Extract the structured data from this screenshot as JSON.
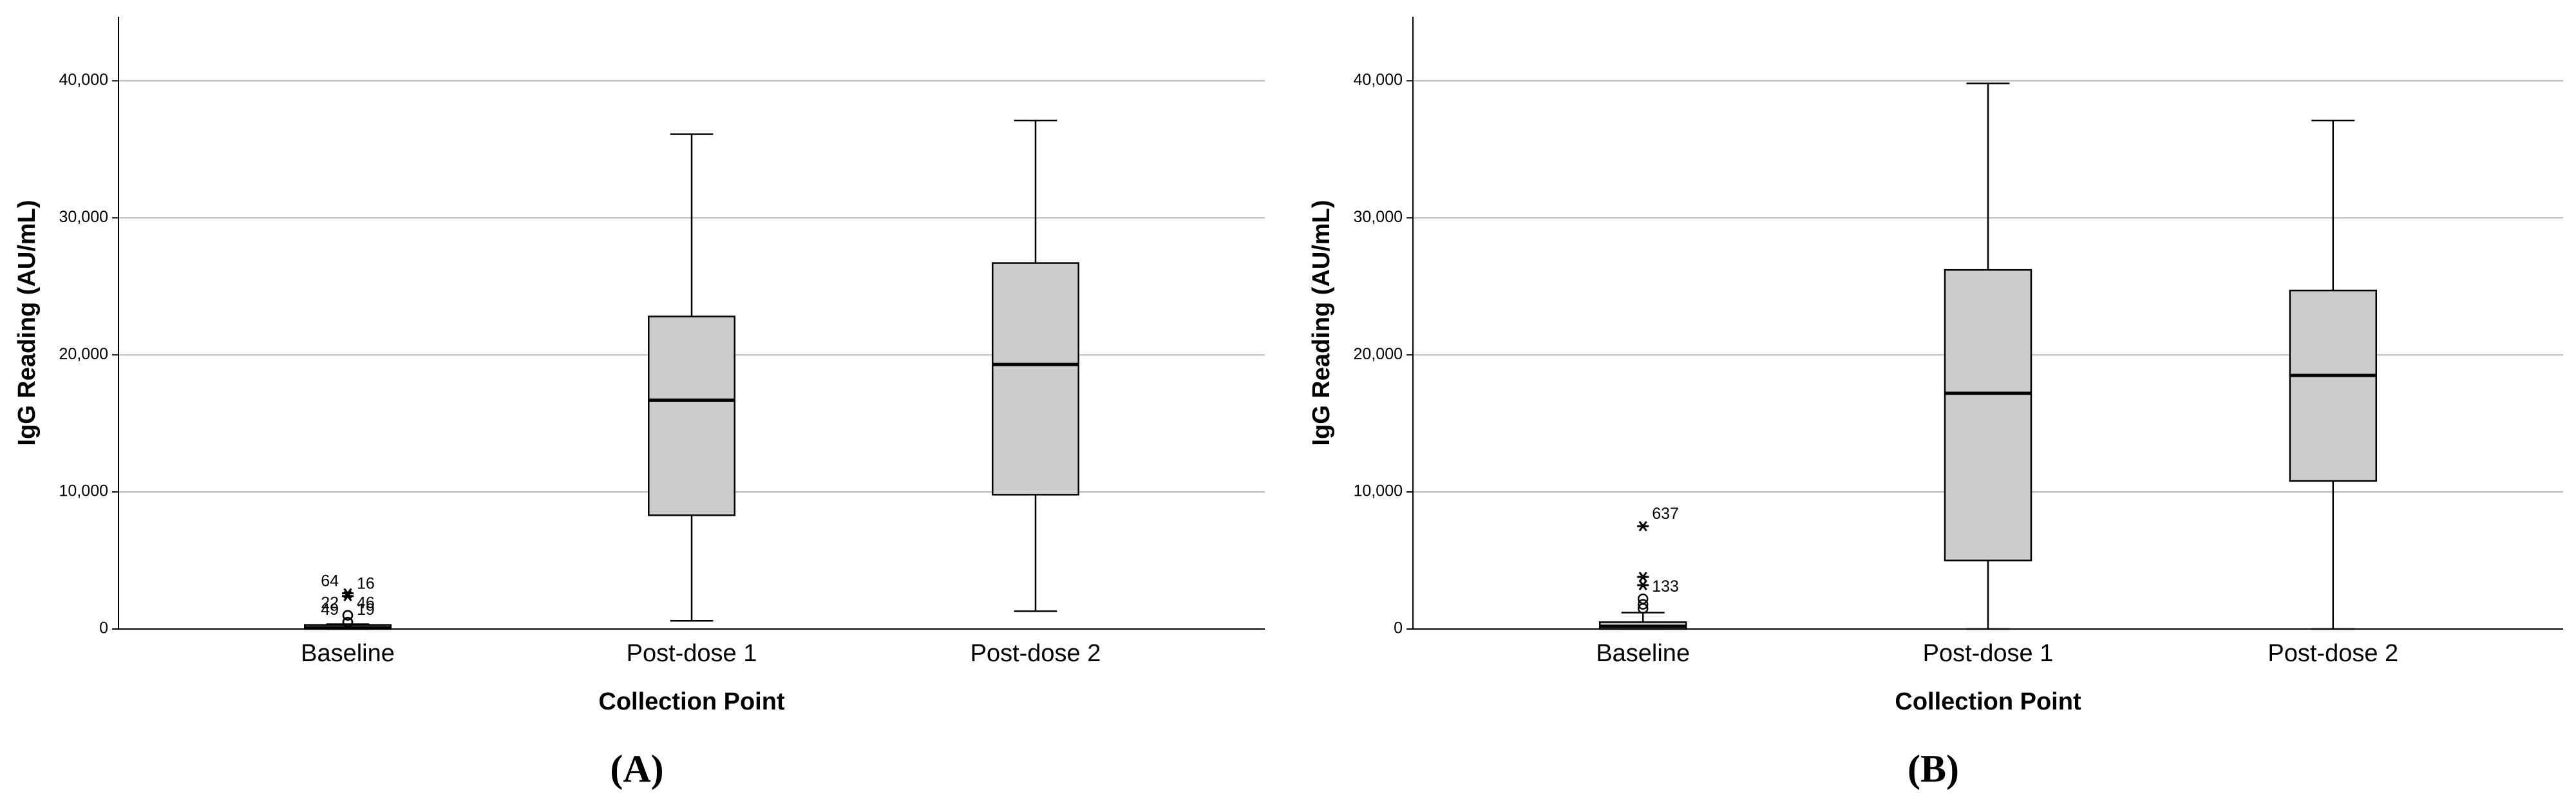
{
  "chart_data": [
    {
      "type": "box",
      "panel_label": "(A)",
      "x_label": "Collection Point",
      "y_label": "IgG Reading (AU/mL)",
      "categories": [
        "Baseline",
        "Post-dose 1",
        "Post-dose 2"
      ],
      "color": "#cccccc",
      "grid": true,
      "ylim": [
        0,
        44670
      ],
      "yticks": [
        0,
        {
          "value": 10000,
          "label": "10,000"
        },
        {
          "value": 20000,
          "label": "20,000"
        },
        {
          "value": 30000,
          "label": "30,000"
        },
        {
          "value": 40000,
          "label": "40,000"
        }
      ],
      "boxes": [
        {
          "min": 0,
          "q1": 0,
          "median": 100,
          "q3": 300,
          "max": 350,
          "outliers": [
            {
              "value": 500,
              "label": "49",
              "shape": "circle"
            },
            {
              "value": 500,
              "label": "19",
              "shape": "circle"
            },
            {
              "value": 1000,
              "label": "22",
              "shape": "circle"
            },
            {
              "value": 1000,
              "label": "46",
              "shape": "circle"
            },
            {
              "value": 2600,
              "label": "64",
              "shape": "star"
            },
            {
              "value": 2400,
              "label": "16",
              "shape": "star"
            }
          ]
        },
        {
          "min": 600,
          "q1": 8300,
          "median": 16700,
          "q3": 22800,
          "max": 36100,
          "outliers": []
        },
        {
          "min": 1300,
          "q1": 9800,
          "median": 19300,
          "q3": 26700,
          "max": 37100,
          "outliers": []
        }
      ]
    },
    {
      "type": "box",
      "panel_label": "(B)",
      "x_label": "Collection Point",
      "y_label": "IgG Reading (AU/mL)",
      "categories": [
        "Baseline",
        "Post-dose 1",
        "Post-dose 2"
      ],
      "color": "#cccccc",
      "grid": true,
      "ylim": [
        0,
        44670
      ],
      "yticks": [
        0,
        {
          "value": 10000,
          "label": "10,000"
        },
        {
          "value": 20000,
          "label": "20,000"
        },
        {
          "value": 30000,
          "label": "30,000"
        },
        {
          "value": 40000,
          "label": "40,000"
        }
      ],
      "boxes": [
        {
          "min": 0,
          "q1": 0,
          "median": 200,
          "q3": 500,
          "max": 1200,
          "outliers": [
            {
              "value": 7500,
              "label": "637",
              "shape": "star"
            },
            {
              "value": 2200,
              "label": "133",
              "shape": "circle"
            },
            {
              "value": 3800,
              "shape": "star"
            },
            {
              "value": 3200,
              "shape": "star"
            },
            {
              "value": 1800,
              "shape": "circle"
            },
            {
              "value": 1500,
              "shape": "circle"
            }
          ]
        },
        {
          "min": 0,
          "q1": 5000,
          "median": 17200,
          "q3": 26200,
          "max": 39800,
          "outliers": []
        },
        {
          "min": 0,
          "q1": 10800,
          "median": 18500,
          "q3": 24700,
          "max": 37100,
          "outliers": []
        }
      ]
    }
  ]
}
